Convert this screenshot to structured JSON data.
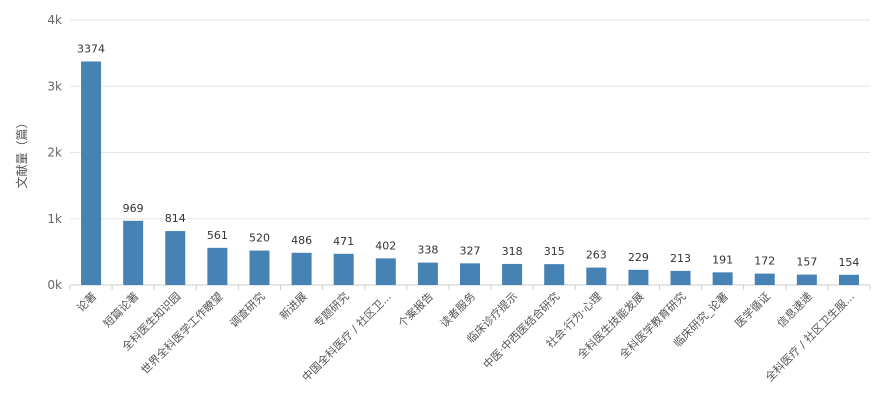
{
  "chart_data": {
    "type": "bar",
    "title": "",
    "xlabel": "",
    "ylabel": "文献量（篇）",
    "ylim": [
      0,
      4000
    ],
    "y_ticks": [
      {
        "value": 0,
        "label": "0k"
      },
      {
        "value": 1000,
        "label": "1k"
      },
      {
        "value": 2000,
        "label": "2k"
      },
      {
        "value": 3000,
        "label": "3k"
      },
      {
        "value": 4000,
        "label": "4k"
      }
    ],
    "grid": true,
    "legend": "none",
    "bar_color": "#4682b4",
    "categories": [
      "论著",
      "短篇论著",
      "全科医生知识园",
      "世界全科医学工作瞭望",
      "调查研究",
      "新进展",
      "专题研究",
      "中国全科医疗 / 社区卫...",
      "个案报告",
      "读者服务",
      "临床诊疗提示",
      "中医·中西医结合研究",
      "社会·行为·心理",
      "全科医生技能发展",
      "全科医学教育研究",
      "临床研究_论著",
      "医学循证",
      "信息速递",
      "全科医疗 / 社区卫生服..."
    ],
    "values": [
      3374,
      969,
      814,
      561,
      520,
      486,
      471,
      402,
      338,
      327,
      318,
      315,
      263,
      229,
      213,
      191,
      172,
      157,
      154
    ]
  }
}
